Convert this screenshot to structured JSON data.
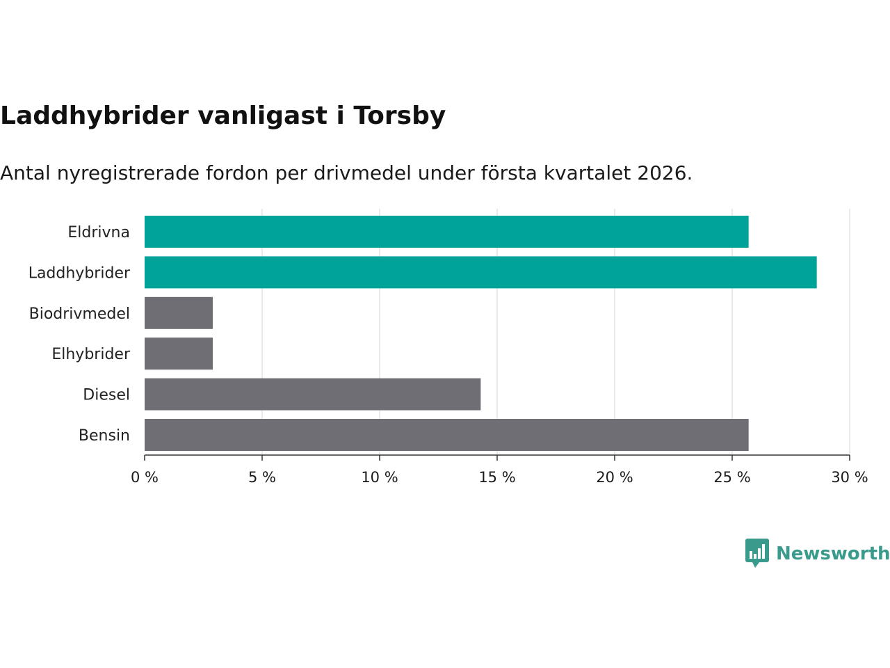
{
  "chart_data": {
    "type": "bar",
    "orientation": "horizontal",
    "title": "Laddhybrider vanligast i Torsby",
    "subtitle": "Antal nyregistrerade fordon per drivmedel under första kvartalet 2026.",
    "categories": [
      "Eldrivna",
      "Laddhybrider",
      "Biodrivmedel",
      "Elhybrider",
      "Diesel",
      "Bensin"
    ],
    "values": [
      25.7,
      28.6,
      2.9,
      2.9,
      14.3,
      25.7
    ],
    "bar_colors": [
      "#00a398",
      "#00a398",
      "#6f6e75",
      "#6f6e75",
      "#6f6e75",
      "#6f6e75"
    ],
    "xlabel": "",
    "ylabel": "",
    "xlim": [
      0,
      30
    ],
    "xticks": [
      0,
      5,
      10,
      15,
      20,
      25,
      30
    ],
    "xtick_labels": [
      "0 %",
      "5 %",
      "10 %",
      "15 %",
      "20 %",
      "25 %",
      "30 %"
    ],
    "grid": true,
    "legend": "none"
  },
  "brand": {
    "name": "Newsworthy",
    "color": "#3a9b8c"
  },
  "colors": {
    "highlight": "#00a398",
    "neutral": "#6f6e75",
    "grid": "#dcdcdc",
    "axis": "#333333"
  }
}
